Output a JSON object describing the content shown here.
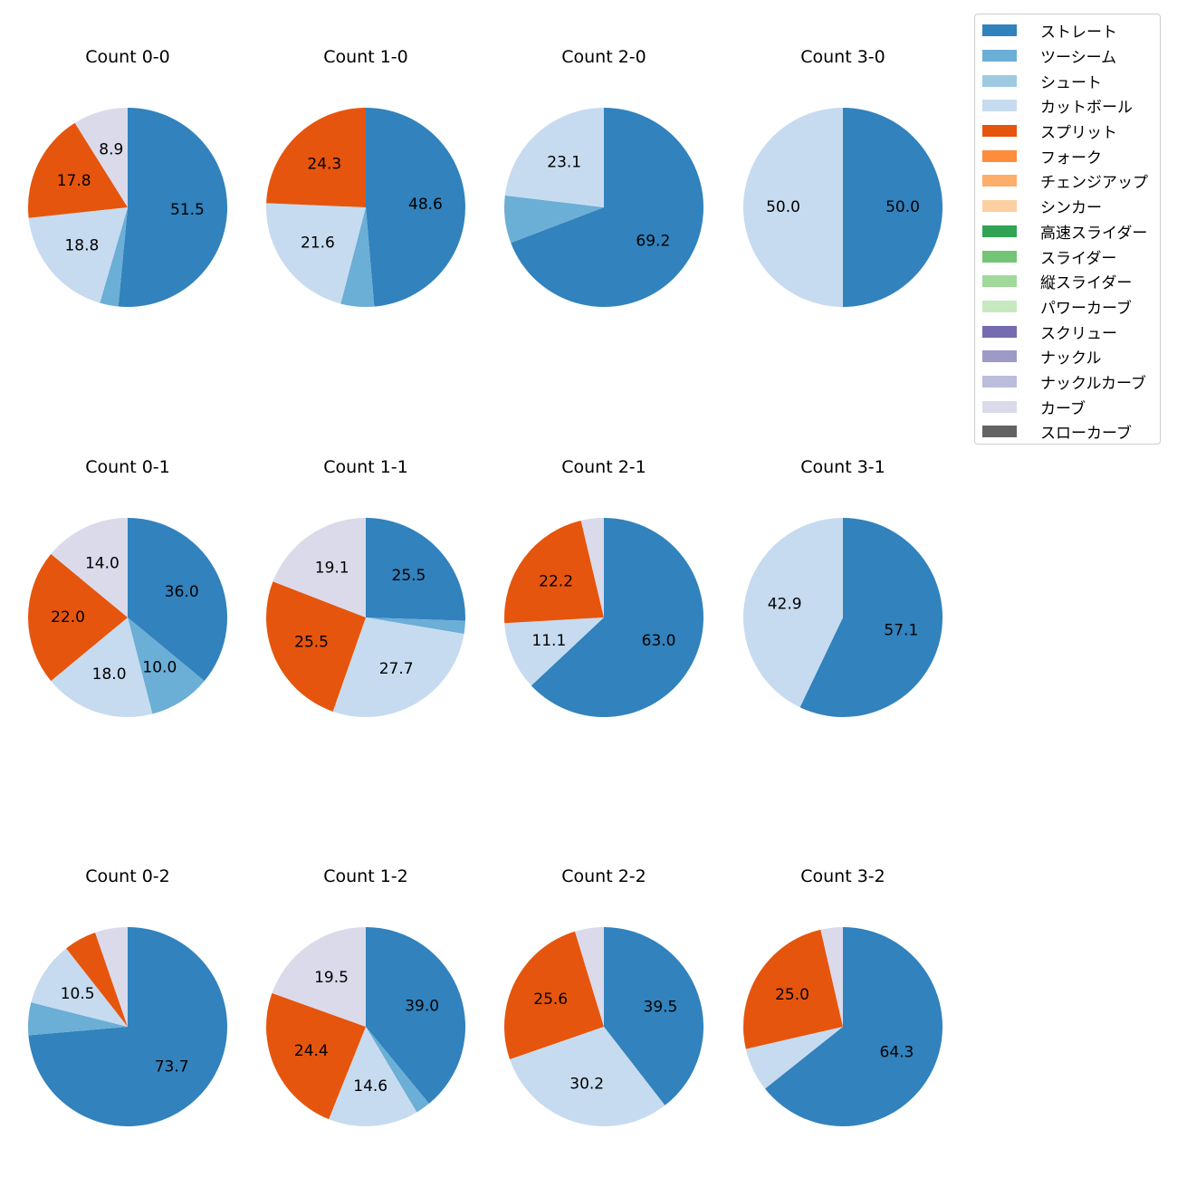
{
  "legend": {
    "items": [
      {
        "label": "ストレート",
        "color": "#3182bd"
      },
      {
        "label": "ツーシーム",
        "color": "#6baed6"
      },
      {
        "label": "シュート",
        "color": "#9ecae1"
      },
      {
        "label": "カットボール",
        "color": "#c6dbef"
      },
      {
        "label": "スプリット",
        "color": "#e6550d"
      },
      {
        "label": "フォーク",
        "color": "#fd8d3c"
      },
      {
        "label": "チェンジアップ",
        "color": "#fdae6b"
      },
      {
        "label": "シンカー",
        "color": "#fdd0a2"
      },
      {
        "label": "高速スライダー",
        "color": "#31a354"
      },
      {
        "label": "スライダー",
        "color": "#74c476"
      },
      {
        "label": "縦スライダー",
        "color": "#a1d99b"
      },
      {
        "label": "パワーカーブ",
        "color": "#c7e9c0"
      },
      {
        "label": "スクリュー",
        "color": "#756bb1"
      },
      {
        "label": "ナックル",
        "color": "#9e9ac8"
      },
      {
        "label": "ナックルカーブ",
        "color": "#bcbddc"
      },
      {
        "label": "カーブ",
        "color": "#dadaeb"
      },
      {
        "label": "スローカーブ",
        "color": "#636363"
      }
    ]
  },
  "chart_data": [
    {
      "type": "pie",
      "title": "Count 0-0",
      "slices": [
        {
          "category": "ストレート",
          "value": 51.5,
          "label": "51.5"
        },
        {
          "category": "ツーシーム",
          "value": 3.0
        },
        {
          "category": "カットボール",
          "value": 18.8,
          "label": "18.8"
        },
        {
          "category": "スプリット",
          "value": 17.8,
          "label": "17.8"
        },
        {
          "category": "カーブ",
          "value": 8.9,
          "label": "8.9"
        }
      ]
    },
    {
      "type": "pie",
      "title": "Count 1-0",
      "slices": [
        {
          "category": "ストレート",
          "value": 48.6,
          "label": "48.6"
        },
        {
          "category": "ツーシーム",
          "value": 5.4
        },
        {
          "category": "カットボール",
          "value": 21.6,
          "label": "21.6"
        },
        {
          "category": "スプリット",
          "value": 24.3,
          "label": "24.3"
        }
      ]
    },
    {
      "type": "pie",
      "title": "Count 2-0",
      "slices": [
        {
          "category": "ストレート",
          "value": 69.2,
          "label": "69.2"
        },
        {
          "category": "ツーシーム",
          "value": 7.7
        },
        {
          "category": "カットボール",
          "value": 23.1,
          "label": "23.1"
        }
      ]
    },
    {
      "type": "pie",
      "title": "Count 3-0",
      "slices": [
        {
          "category": "ストレート",
          "value": 50.0,
          "label": "50.0"
        },
        {
          "category": "カットボール",
          "value": 50.0,
          "label": "50.0"
        }
      ]
    },
    {
      "type": "pie",
      "title": "Count 0-1",
      "slices": [
        {
          "category": "ストレート",
          "value": 36.0,
          "label": "36.0"
        },
        {
          "category": "ツーシーム",
          "value": 10.0,
          "label": "10.0"
        },
        {
          "category": "カットボール",
          "value": 18.0,
          "label": "18.0"
        },
        {
          "category": "スプリット",
          "value": 22.0,
          "label": "22.0"
        },
        {
          "category": "カーブ",
          "value": 14.0,
          "label": "14.0"
        }
      ]
    },
    {
      "type": "pie",
      "title": "Count 1-1",
      "slices": [
        {
          "category": "ストレート",
          "value": 25.5,
          "label": "25.5"
        },
        {
          "category": "ツーシーム",
          "value": 2.1
        },
        {
          "category": "カットボール",
          "value": 27.7,
          "label": "27.7"
        },
        {
          "category": "スプリット",
          "value": 25.5,
          "label": "25.5"
        },
        {
          "category": "カーブ",
          "value": 19.1,
          "label": "19.1"
        }
      ]
    },
    {
      "type": "pie",
      "title": "Count 2-1",
      "slices": [
        {
          "category": "ストレート",
          "value": 63.0,
          "label": "63.0"
        },
        {
          "category": "カットボール",
          "value": 11.1,
          "label": "11.1"
        },
        {
          "category": "スプリット",
          "value": 22.2,
          "label": "22.2"
        },
        {
          "category": "カーブ",
          "value": 3.7
        }
      ]
    },
    {
      "type": "pie",
      "title": "Count 3-1",
      "slices": [
        {
          "category": "ストレート",
          "value": 57.1,
          "label": "57.1"
        },
        {
          "category": "カットボール",
          "value": 42.9,
          "label": "42.9"
        }
      ]
    },
    {
      "type": "pie",
      "title": "Count 0-2",
      "slices": [
        {
          "category": "ストレート",
          "value": 73.7,
          "label": "73.7"
        },
        {
          "category": "ツーシーム",
          "value": 5.3
        },
        {
          "category": "カットボール",
          "value": 10.5,
          "label": "10.5"
        },
        {
          "category": "スプリット",
          "value": 5.3
        },
        {
          "category": "カーブ",
          "value": 5.3
        }
      ]
    },
    {
      "type": "pie",
      "title": "Count 1-2",
      "slices": [
        {
          "category": "ストレート",
          "value": 39.0,
          "label": "39.0"
        },
        {
          "category": "ツーシーム",
          "value": 2.4
        },
        {
          "category": "カットボール",
          "value": 14.6,
          "label": "14.6"
        },
        {
          "category": "スプリット",
          "value": 24.4,
          "label": "24.4"
        },
        {
          "category": "カーブ",
          "value": 19.5,
          "label": "19.5"
        }
      ]
    },
    {
      "type": "pie",
      "title": "Count 2-2",
      "slices": [
        {
          "category": "ストレート",
          "value": 39.5,
          "label": "39.5"
        },
        {
          "category": "カットボール",
          "value": 30.2,
          "label": "30.2"
        },
        {
          "category": "スプリット",
          "value": 25.6,
          "label": "25.6"
        },
        {
          "category": "カーブ",
          "value": 4.7
        }
      ]
    },
    {
      "type": "pie",
      "title": "Count 3-2",
      "slices": [
        {
          "category": "ストレート",
          "value": 64.3,
          "label": "64.3"
        },
        {
          "category": "カットボール",
          "value": 7.1
        },
        {
          "category": "スプリット",
          "value": 25.0,
          "label": "25.0"
        },
        {
          "category": "カーブ",
          "value": 3.6
        }
      ]
    }
  ]
}
